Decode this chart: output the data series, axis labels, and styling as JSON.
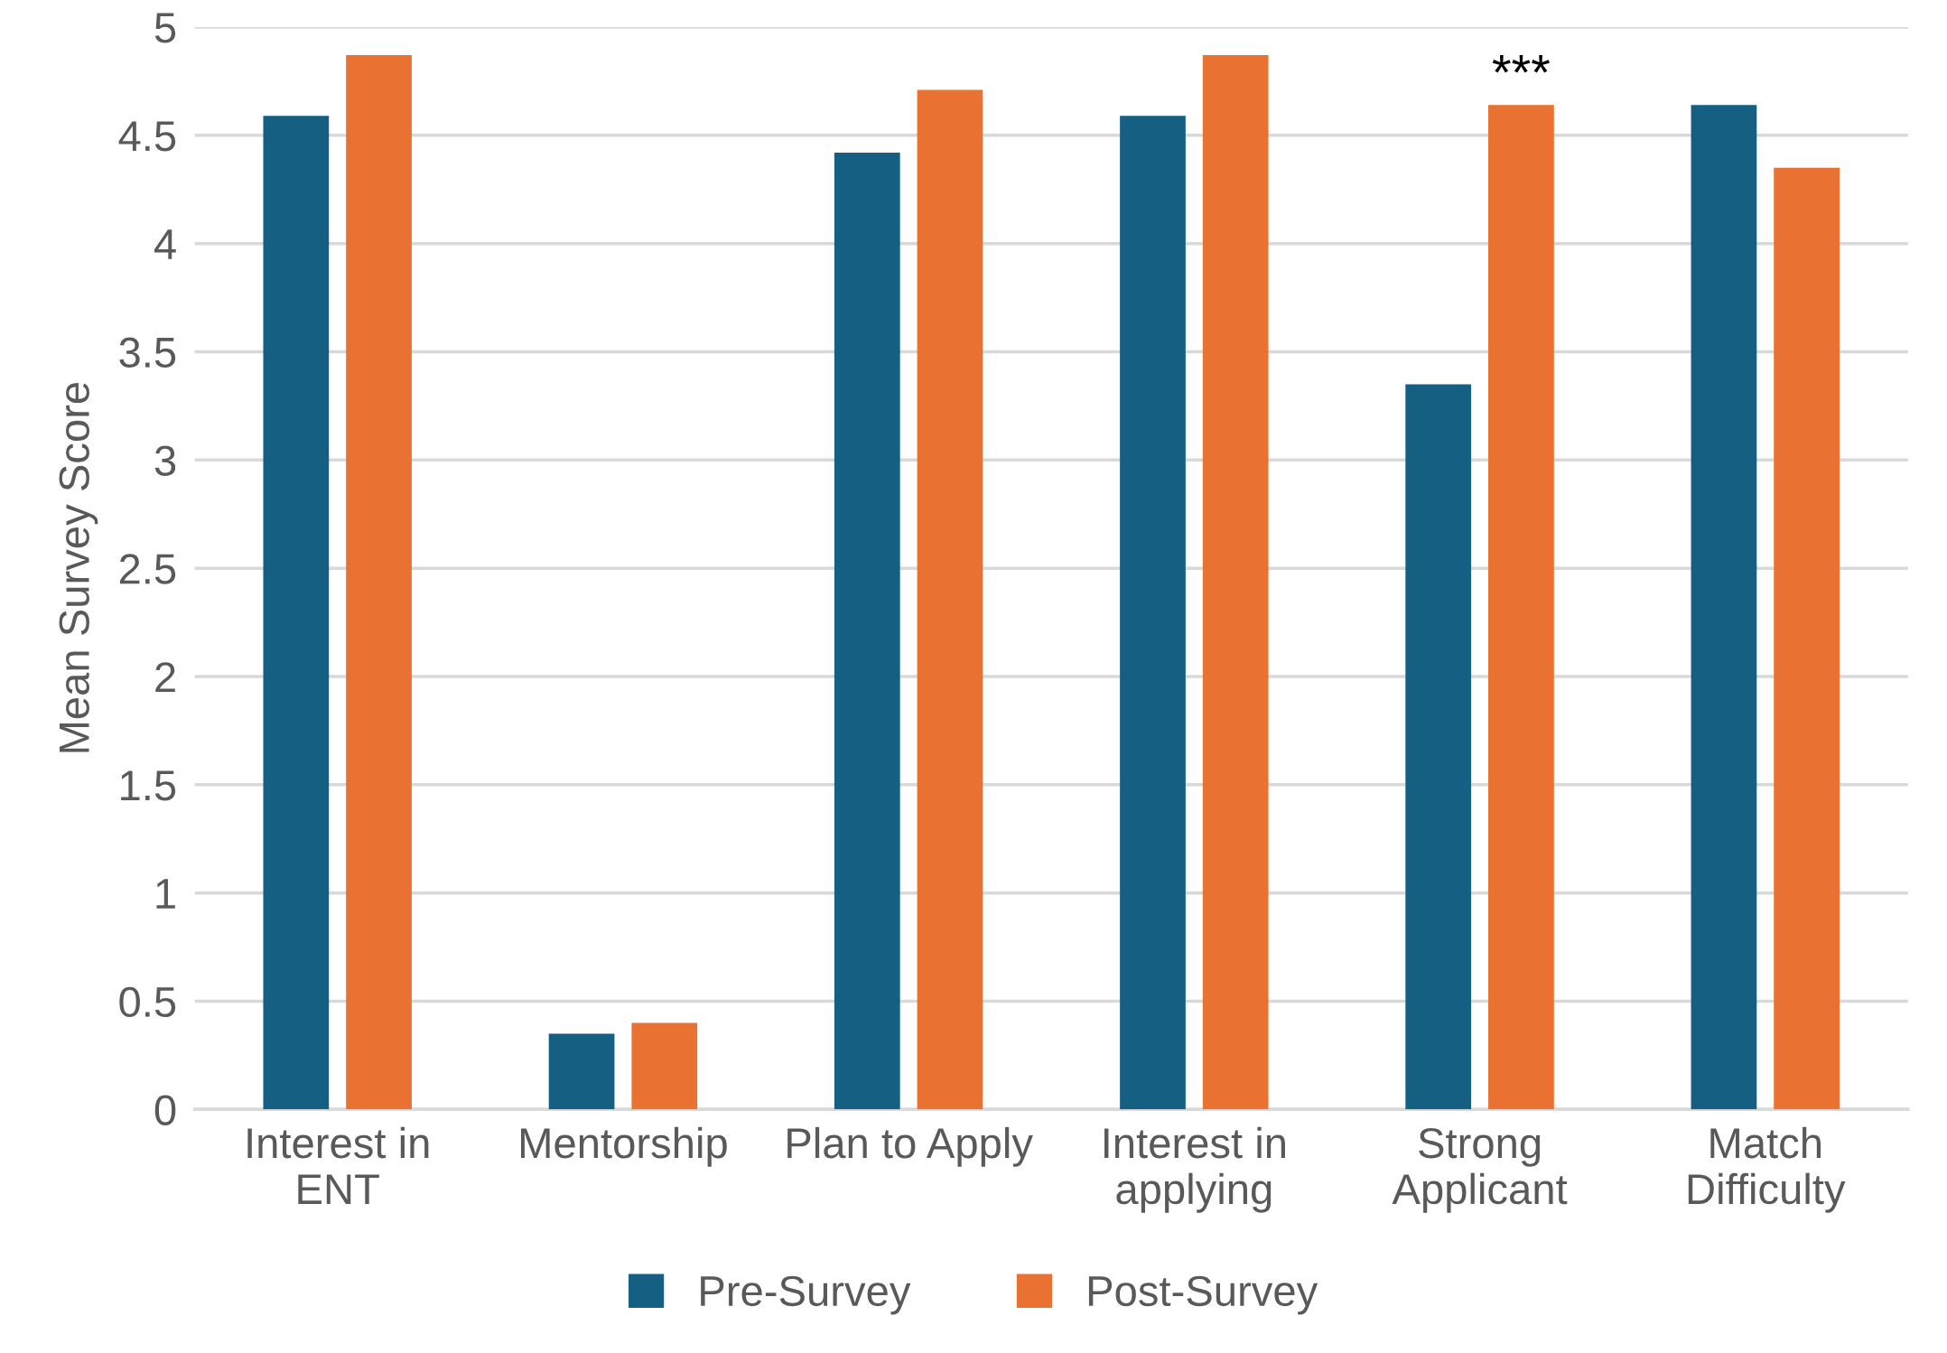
{
  "chart_data": {
    "type": "bar",
    "ylabel": "Mean Survey Score",
    "categories": [
      "Interest in\nENT",
      "Mentorship",
      "Plan to Apply",
      "Interest in\napplying",
      "Strong\nApplicant",
      "Match\nDifficulty"
    ],
    "series": [
      {
        "name": "Pre-Survey",
        "color": "#156082",
        "values": [
          4.59,
          0.35,
          4.42,
          4.59,
          3.35,
          4.64
        ]
      },
      {
        "name": "Post-Survey",
        "color": "#e97132",
        "values": [
          4.87,
          0.4,
          4.71,
          4.87,
          4.64,
          4.35
        ]
      }
    ],
    "ylim": [
      0,
      5
    ],
    "yticks": [
      0,
      0.5,
      1,
      1.5,
      2,
      2.5,
      3,
      3.5,
      4,
      4.5,
      5
    ],
    "grid": "y",
    "legend": "bottom",
    "annotations": [
      "***"
    ]
  }
}
